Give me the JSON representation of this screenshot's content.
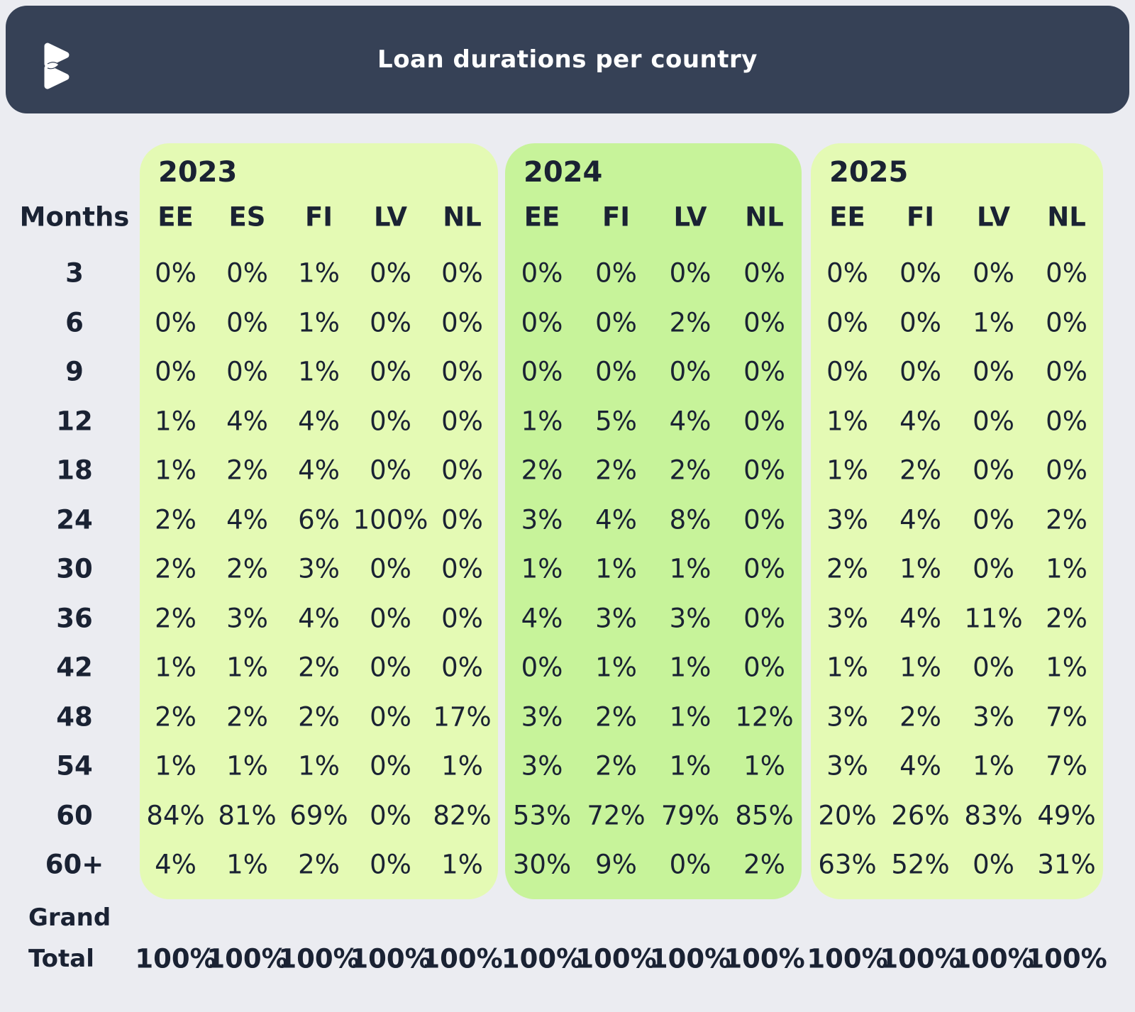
{
  "header": {
    "title": "Loan durations per country",
    "logo_icon": "bondora-logo"
  },
  "chart_data": {
    "type": "table",
    "title": "Loan durations per country",
    "months_label": "Months",
    "row_labels": [
      "3",
      "6",
      "9",
      "12",
      "18",
      "24",
      "30",
      "36",
      "42",
      "48",
      "54",
      "60",
      "60+"
    ],
    "grand_total_label_line1": "Grand",
    "grand_total_label_line2": "Total",
    "unit": "%",
    "sections": [
      {
        "year": "2023",
        "countries": [
          "EE",
          "ES",
          "FI",
          "LV",
          "NL"
        ],
        "rows": [
          [
            "0%",
            "0%",
            "1%",
            "0%",
            "0%"
          ],
          [
            "0%",
            "0%",
            "1%",
            "0%",
            "0%"
          ],
          [
            "0%",
            "0%",
            "1%",
            "0%",
            "0%"
          ],
          [
            "1%",
            "4%",
            "4%",
            "0%",
            "0%"
          ],
          [
            "1%",
            "2%",
            "4%",
            "0%",
            "0%"
          ],
          [
            "2%",
            "4%",
            "6%",
            "100%",
            "0%"
          ],
          [
            "2%",
            "2%",
            "3%",
            "0%",
            "0%"
          ],
          [
            "2%",
            "3%",
            "4%",
            "0%",
            "0%"
          ],
          [
            "1%",
            "1%",
            "2%",
            "0%",
            "0%"
          ],
          [
            "2%",
            "2%",
            "2%",
            "0%",
            "17%"
          ],
          [
            "1%",
            "1%",
            "1%",
            "0%",
            "1%"
          ],
          [
            "84%",
            "81%",
            "69%",
            "0%",
            "82%"
          ],
          [
            "4%",
            "1%",
            "2%",
            "0%",
            "1%"
          ]
        ],
        "grand_total": [
          "100%",
          "100%",
          "100%",
          "100%",
          "100%"
        ]
      },
      {
        "year": "2024",
        "countries": [
          "EE",
          "FI",
          "LV",
          "NL"
        ],
        "rows": [
          [
            "0%",
            "0%",
            "0%",
            "0%"
          ],
          [
            "0%",
            "0%",
            "2%",
            "0%"
          ],
          [
            "0%",
            "0%",
            "0%",
            "0%"
          ],
          [
            "1%",
            "5%",
            "4%",
            "0%"
          ],
          [
            "2%",
            "2%",
            "2%",
            "0%"
          ],
          [
            "3%",
            "4%",
            "8%",
            "0%"
          ],
          [
            "1%",
            "1%",
            "1%",
            "0%"
          ],
          [
            "4%",
            "3%",
            "3%",
            "0%"
          ],
          [
            "0%",
            "1%",
            "1%",
            "0%"
          ],
          [
            "3%",
            "2%",
            "1%",
            "12%"
          ],
          [
            "3%",
            "2%",
            "1%",
            "1%"
          ],
          [
            "53%",
            "72%",
            "79%",
            "85%"
          ],
          [
            "30%",
            "9%",
            "0%",
            "2%"
          ]
        ],
        "grand_total": [
          "100%",
          "100%",
          "100%",
          "100%"
        ]
      },
      {
        "year": "2025",
        "countries": [
          "EE",
          "FI",
          "LV",
          "NL"
        ],
        "rows": [
          [
            "0%",
            "0%",
            "0%",
            "0%"
          ],
          [
            "0%",
            "0%",
            "1%",
            "0%"
          ],
          [
            "0%",
            "0%",
            "0%",
            "0%"
          ],
          [
            "1%",
            "4%",
            "0%",
            "0%"
          ],
          [
            "1%",
            "2%",
            "0%",
            "0%"
          ],
          [
            "3%",
            "4%",
            "0%",
            "2%"
          ],
          [
            "2%",
            "1%",
            "0%",
            "1%"
          ],
          [
            "3%",
            "4%",
            "11%",
            "2%"
          ],
          [
            "1%",
            "1%",
            "0%",
            "1%"
          ],
          [
            "3%",
            "2%",
            "3%",
            "7%"
          ],
          [
            "3%",
            "4%",
            "1%",
            "7%"
          ],
          [
            "20%",
            "26%",
            "83%",
            "49%"
          ],
          [
            "63%",
            "52%",
            "0%",
            "31%"
          ]
        ],
        "grand_total": [
          "100%",
          "100%",
          "100%",
          "100%"
        ]
      }
    ]
  },
  "colors": {
    "page_bg": "#ebecf1",
    "header_bg": "#364156",
    "panel_light": "#e4fab4",
    "panel_dark": "#c7f39a",
    "text": "#1a2233",
    "title_text": "#ffffff"
  }
}
